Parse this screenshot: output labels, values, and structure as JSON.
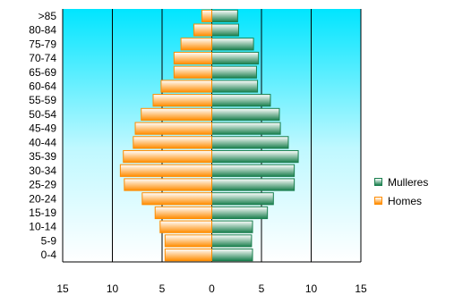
{
  "chart_data": {
    "type": "bar",
    "orientation": "horizontal",
    "layout": "population-pyramid",
    "categories": [
      ">85",
      "80-84",
      "75-79",
      "70-74",
      "65-69",
      "60-64",
      "55-59",
      "50-54",
      "45-49",
      "40-44",
      "35-39",
      "30-34",
      "25-29",
      "20-24",
      "15-19",
      "10-14",
      "5-9",
      "0-4"
    ],
    "series": [
      {
        "name": "Mulleres",
        "side": "right",
        "color": "#1a7f4e",
        "values": [
          2.6,
          2.7,
          4.2,
          4.7,
          4.5,
          4.6,
          5.9,
          6.8,
          6.9,
          7.7,
          8.7,
          8.3,
          8.3,
          6.2,
          5.6,
          4.1,
          4.0,
          4.1
        ]
      },
      {
        "name": "Homes",
        "side": "left",
        "color": "#ff8c00",
        "values": [
          1.0,
          1.8,
          3.1,
          3.8,
          3.8,
          5.1,
          5.9,
          7.1,
          7.7,
          7.9,
          8.9,
          9.2,
          8.8,
          7.0,
          5.7,
          5.2,
          4.7,
          4.7
        ]
      }
    ],
    "xlim": [
      -15,
      15
    ],
    "xticks": [
      -15,
      -10,
      -5,
      0,
      5,
      10,
      15
    ],
    "xtick_labels": [
      "15",
      "10",
      "5",
      "0",
      "5",
      "10",
      "15"
    ],
    "grid": "vertical",
    "plot_background": "#00eaff",
    "legend": "right",
    "title": "",
    "xlabel": "",
    "ylabel": ""
  }
}
